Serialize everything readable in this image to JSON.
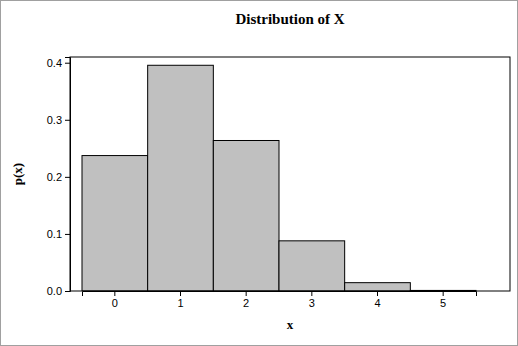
{
  "chart_data": {
    "type": "bar",
    "title": "Distribution of X",
    "xlabel": "x",
    "ylabel": "p(x)",
    "categories": [
      "0",
      "1",
      "2",
      "3",
      "4",
      "5"
    ],
    "values": [
      0.2373,
      0.3955,
      0.2637,
      0.0879,
      0.0146,
      0.001
    ],
    "color": "#c0c0c0",
    "ylim": [
      0,
      0.41
    ],
    "yticks": [
      {
        "value": 0,
        "label": "0.0"
      },
      0.1,
      0.2,
      0.3,
      0.4
    ],
    "grid": false
  }
}
